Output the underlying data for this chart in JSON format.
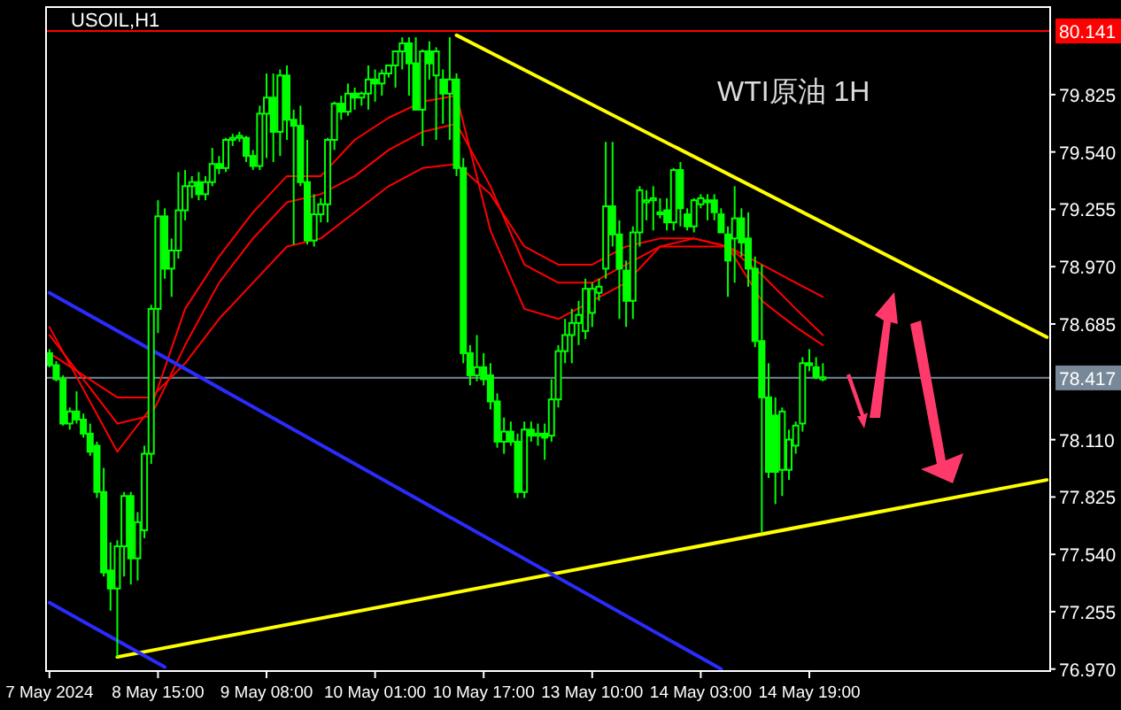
{
  "chart_data": {
    "type": "candlestick",
    "title": "USOIL,H1",
    "annotations": [
      "WTI原油 1H"
    ],
    "categories": [
      "7 May 2024",
      null,
      null,
      null,
      null,
      null,
      null,
      null,
      null,
      null,
      null,
      null,
      null,
      null,
      null,
      null,
      "8 May 15:00",
      null,
      null,
      null,
      null,
      null,
      null,
      null,
      null,
      null,
      null,
      null,
      null,
      null,
      null,
      null,
      "9 May 08:00",
      null,
      null,
      null,
      null,
      null,
      null,
      null,
      null,
      null,
      null,
      null,
      null,
      null,
      null,
      null,
      "10 May 01:00",
      null,
      null,
      null,
      null,
      null,
      null,
      null,
      null,
      null,
      null,
      null,
      null,
      null,
      null,
      null,
      "10 May 17:00",
      null,
      null,
      null,
      null,
      null,
      null,
      null,
      null,
      null,
      null,
      null,
      null,
      null,
      null,
      null,
      "13 May 10:00",
      null,
      null,
      null,
      null,
      null,
      null,
      null,
      null,
      null,
      null,
      null,
      null,
      null,
      null,
      null,
      "14 May 03:00",
      null,
      null,
      null,
      null,
      null,
      null,
      null,
      null,
      null,
      null,
      null,
      null,
      null,
      null,
      null,
      "14 May 19:00",
      null,
      null,
      null,
      null,
      null,
      null,
      null,
      null,
      null,
      null,
      null,
      null,
      null,
      null,
      null,
      null,
      null,
      null,
      null,
      null,
      null,
      null,
      null,
      null,
      null,
      null,
      null,
      null,
      null,
      null,
      null,
      null,
      null,
      null,
      null
    ],
    "ohlc": [
      [
        78.54,
        78.56,
        78.47,
        78.48
      ],
      [
        78.48,
        78.5,
        78.4,
        78.41
      ],
      [
        78.41,
        78.43,
        78.18,
        78.19
      ],
      [
        78.19,
        78.27,
        78.16,
        78.25
      ],
      [
        78.25,
        78.35,
        78.19,
        78.21
      ],
      [
        78.21,
        78.24,
        78.12,
        78.14
      ],
      [
        78.14,
        78.19,
        78.03,
        78.05
      ],
      [
        78.08,
        78.1,
        77.82,
        77.85
      ],
      [
        77.85,
        77.97,
        77.43,
        77.45
      ],
      [
        77.46,
        77.6,
        77.26,
        77.37
      ],
      [
        77.37,
        77.61,
        77.03,
        77.58
      ],
      [
        77.58,
        77.85,
        77.43,
        77.83
      ],
      [
        77.83,
        77.85,
        77.39,
        77.52
      ],
      [
        77.52,
        77.75,
        77.41,
        77.7
      ],
      [
        77.66,
        78.08,
        77.62,
        78.04
      ],
      [
        78.04,
        78.78,
        77.99,
        78.76
      ],
      [
        78.76,
        79.3,
        78.64,
        79.22
      ],
      [
        79.22,
        79.26,
        78.91,
        78.96
      ],
      [
        78.96,
        79.11,
        78.82,
        79.05
      ],
      [
        79.05,
        79.44,
        79.01,
        79.25
      ],
      [
        79.25,
        79.45,
        79.2,
        79.37
      ],
      [
        79.37,
        79.42,
        79.31,
        79.39
      ],
      [
        79.39,
        79.44,
        79.3,
        79.33
      ],
      [
        79.33,
        79.42,
        79.3,
        79.39
      ],
      [
        79.39,
        79.56,
        79.37,
        79.48
      ],
      [
        79.48,
        79.52,
        79.43,
        79.46
      ],
      [
        79.46,
        79.61,
        79.44,
        79.6
      ],
      [
        79.6,
        79.63,
        79.57,
        79.61
      ],
      [
        79.61,
        79.64,
        79.59,
        79.62
      ],
      [
        79.61,
        79.62,
        79.49,
        79.52
      ],
      [
        79.52,
        79.55,
        79.45,
        79.47
      ],
      [
        79.47,
        79.77,
        79.45,
        79.73
      ],
      [
        79.73,
        79.93,
        79.51,
        79.81
      ],
      [
        79.81,
        79.93,
        79.49,
        79.64
      ],
      [
        79.64,
        79.95,
        79.52,
        79.92
      ],
      [
        79.92,
        79.97,
        79.6,
        79.7
      ],
      [
        79.7,
        79.75,
        79.08,
        79.67
      ],
      [
        79.67,
        79.77,
        79.37,
        79.39
      ],
      [
        79.39,
        79.6,
        79.08,
        79.1
      ],
      [
        79.1,
        79.33,
        79.07,
        79.23
      ],
      [
        79.23,
        79.31,
        79.19,
        79.28
      ],
      [
        79.28,
        79.61,
        79.19,
        79.6
      ],
      [
        79.6,
        79.79,
        79.55,
        79.78
      ],
      [
        79.78,
        79.82,
        79.7,
        79.74
      ],
      [
        79.74,
        79.88,
        79.72,
        79.83
      ],
      [
        79.83,
        79.86,
        79.75,
        79.81
      ],
      [
        79.81,
        79.84,
        79.77,
        79.83
      ],
      [
        79.83,
        79.97,
        79.75,
        79.9
      ],
      [
        79.9,
        79.95,
        79.79,
        79.88
      ],
      [
        79.88,
        79.95,
        79.82,
        79.93
      ],
      [
        79.93,
        79.97,
        79.91,
        79.97
      ],
      [
        79.97,
        80.04,
        79.86,
        80.04
      ],
      [
        80.04,
        80.11,
        79.95,
        80.08
      ],
      [
        80.08,
        80.11,
        79.82,
        79.98
      ],
      [
        79.98,
        80.11,
        79.75,
        79.75
      ],
      [
        79.75,
        80.05,
        79.57,
        80.04
      ],
      [
        80.04,
        80.09,
        79.9,
        79.98
      ],
      [
        79.92,
        80.06,
        79.6,
        80.04
      ],
      [
        79.9,
        79.95,
        79.68,
        79.83
      ],
      [
        79.83,
        80.11,
        79.6,
        79.9
      ],
      [
        79.9,
        79.93,
        79.42,
        79.46
      ],
      [
        79.46,
        79.51,
        78.49,
        78.54
      ],
      [
        78.54,
        78.58,
        78.38,
        78.43
      ],
      [
        78.43,
        78.63,
        78.4,
        78.47
      ],
      [
        78.47,
        78.54,
        78.38,
        78.41
      ],
      [
        78.43,
        78.49,
        78.26,
        78.3
      ],
      [
        78.3,
        78.34,
        78.07,
        78.1
      ],
      [
        78.1,
        78.22,
        78.04,
        78.15
      ],
      [
        78.15,
        78.2,
        78.08,
        78.1
      ],
      [
        78.1,
        78.14,
        77.82,
        77.85
      ],
      [
        77.85,
        78.2,
        77.82,
        78.16
      ],
      [
        78.16,
        78.2,
        78.1,
        78.13
      ],
      [
        78.13,
        78.19,
        78.08,
        78.14
      ],
      [
        78.14,
        78.19,
        78.01,
        78.12
      ],
      [
        78.13,
        78.41,
        78.1,
        78.31
      ],
      [
        78.31,
        78.58,
        78.27,
        78.55
      ],
      [
        78.55,
        78.71,
        78.49,
        78.63
      ],
      [
        78.63,
        78.76,
        78.49,
        78.69
      ],
      [
        78.69,
        78.8,
        78.58,
        78.73
      ],
      [
        78.65,
        78.91,
        78.61,
        78.86
      ],
      [
        78.74,
        78.89,
        78.67,
        78.86
      ],
      [
        78.84,
        78.91,
        78.8,
        78.87
      ],
      [
        78.96,
        79.59,
        78.91,
        79.27
      ],
      [
        79.27,
        79.59,
        79.07,
        79.13
      ],
      [
        79.13,
        79.2,
        78.71,
        78.96
      ],
      [
        78.95,
        79.0,
        78.67,
        78.8
      ],
      [
        78.8,
        79.17,
        78.71,
        79.14
      ],
      [
        79.14,
        79.37,
        79.07,
        79.35
      ],
      [
        79.29,
        79.35,
        79.2,
        79.3
      ],
      [
        79.3,
        79.37,
        79.15,
        79.31
      ],
      [
        79.24,
        79.31,
        79.21,
        79.23
      ],
      [
        79.25,
        79.31,
        79.15,
        79.19
      ],
      [
        79.19,
        79.46,
        79.15,
        79.45
      ],
      [
        79.45,
        79.49,
        79.17,
        79.26
      ],
      [
        79.23,
        79.26,
        79.15,
        79.17
      ],
      [
        79.17,
        79.31,
        79.14,
        79.3
      ],
      [
        79.28,
        79.33,
        79.26,
        79.31
      ],
      [
        79.3,
        79.33,
        79.2,
        79.29
      ],
      [
        79.3,
        79.33,
        79.2,
        79.24
      ],
      [
        79.23,
        79.26,
        79.14,
        79.14
      ],
      [
        79.13,
        79.17,
        78.82,
        79.0
      ],
      [
        79.11,
        79.37,
        78.89,
        79.21
      ],
      [
        79.21,
        79.26,
        79.02,
        79.09
      ],
      [
        79.11,
        79.24,
        78.87,
        78.96
      ],
      [
        78.96,
        79.02,
        78.57,
        78.6
      ],
      [
        78.6,
        78.98,
        77.65,
        78.32
      ],
      [
        78.32,
        78.49,
        77.92,
        77.95
      ],
      [
        78.23,
        78.32,
        77.79,
        77.95
      ],
      [
        77.96,
        78.27,
        77.83,
        78.25
      ],
      [
        77.96,
        78.16,
        77.91,
        78.11
      ],
      [
        78.08,
        78.2,
        78.04,
        78.18
      ],
      [
        78.19,
        78.52,
        78.15,
        78.49
      ],
      [
        78.49,
        78.56,
        78.45,
        78.48
      ],
      [
        78.47,
        78.52,
        78.41,
        78.42
      ],
      [
        78.41,
        78.49,
        78.4,
        78.42
      ],
      null,
      null,
      null,
      null,
      null,
      null,
      null,
      null,
      null,
      null,
      null,
      null,
      null,
      null,
      null,
      null,
      null,
      null,
      null,
      null,
      null,
      null,
      null,
      null,
      null,
      null,
      null,
      null,
      null,
      null,
      null,
      null,
      null
    ],
    "series": [
      {
        "type": "line",
        "color": "#ff0000",
        "values": [
          78.67,
          null,
          null,
          null,
          null,
          null,
          null,
          null,
          null,
          null,
          78.05,
          null,
          null,
          null,
          null,
          78.27,
          null,
          null,
          null,
          null,
          78.76,
          null,
          null,
          null,
          null,
          79.02,
          null,
          null,
          null,
          null,
          79.24,
          null,
          null,
          null,
          null,
          79.42,
          null,
          null,
          null,
          null,
          79.42,
          null,
          null,
          null,
          null,
          79.6,
          null,
          null,
          null,
          null,
          79.71,
          null,
          null,
          null,
          null,
          79.79,
          null,
          null,
          null,
          null,
          79.82,
          null,
          null,
          null,
          null,
          79.15,
          null,
          null,
          null,
          null,
          78.76,
          null,
          null,
          null,
          null,
          78.71,
          null,
          null,
          null,
          null,
          78.8,
          null,
          null,
          null,
          null,
          78.89,
          null,
          null,
          null,
          null,
          79.07,
          null,
          null,
          null,
          null,
          79.07,
          null,
          null,
          null,
          null,
          79.07,
          null,
          null,
          null,
          null,
          78.8,
          null,
          null,
          null,
          null,
          78.67,
          null,
          null,
          null,
          78.58,
          null,
          null,
          null,
          null,
          null,
          null,
          null,
          null,
          null,
          null,
          null,
          null,
          null,
          null,
          null,
          null,
          null,
          null,
          null,
          null,
          null,
          null,
          null,
          null,
          null,
          null,
          null,
          null,
          null,
          null,
          null,
          null,
          null
        ]
      },
      {
        "type": "line",
        "color": "#ff0000",
        "values": [
          78.63,
          null,
          null,
          null,
          null,
          null,
          null,
          null,
          null,
          null,
          78.19,
          null,
          null,
          null,
          null,
          78.23,
          null,
          null,
          null,
          null,
          78.58,
          null,
          null,
          null,
          null,
          78.89,
          null,
          null,
          null,
          null,
          79.11,
          null,
          null,
          null,
          null,
          79.29,
          null,
          null,
          null,
          null,
          79.33,
          null,
          null,
          null,
          null,
          79.42,
          null,
          null,
          null,
          null,
          79.55,
          null,
          null,
          null,
          null,
          79.64,
          null,
          null,
          null,
          null,
          79.68,
          null,
          null,
          null,
          null,
          79.37,
          null,
          null,
          null,
          null,
          78.98,
          null,
          null,
          null,
          null,
          78.89,
          null,
          null,
          null,
          null,
          78.89,
          null,
          null,
          null,
          null,
          78.98,
          null,
          null,
          null,
          null,
          79.07,
          null,
          null,
          null,
          null,
          79.11,
          null,
          null,
          null,
          null,
          79.07,
          null,
          null,
          null,
          null,
          78.93,
          null,
          null,
          null,
          null,
          78.76,
          null,
          null,
          null,
          78.63,
          null,
          null,
          null,
          null,
          null,
          null,
          null,
          null,
          null,
          null,
          null,
          null,
          null,
          null,
          null,
          null,
          null,
          null,
          null,
          null,
          null,
          null,
          null,
          null,
          null,
          null,
          null,
          null,
          null,
          null,
          null,
          null,
          null
        ]
      },
      {
        "type": "line",
        "color": "#ff0000",
        "values": [
          78.54,
          null,
          null,
          null,
          null,
          null,
          null,
          null,
          null,
          null,
          78.32,
          null,
          null,
          null,
          null,
          78.32,
          null,
          null,
          null,
          null,
          78.49,
          null,
          null,
          null,
          null,
          78.71,
          null,
          null,
          null,
          null,
          78.89,
          null,
          null,
          null,
          null,
          79.07,
          null,
          null,
          null,
          null,
          79.11,
          null,
          null,
          null,
          null,
          79.24,
          null,
          null,
          null,
          null,
          79.37,
          null,
          null,
          null,
          null,
          79.46,
          null,
          null,
          null,
          null,
          79.48,
          null,
          null,
          null,
          null,
          79.33,
          null,
          null,
          null,
          null,
          79.07,
          null,
          null,
          null,
          null,
          78.98,
          null,
          null,
          null,
          null,
          78.98,
          null,
          null,
          null,
          null,
          79.07,
          null,
          null,
          null,
          null,
          79.11,
          null,
          null,
          null,
          null,
          79.11,
          null,
          null,
          null,
          null,
          79.07,
          null,
          null,
          null,
          null,
          78.98,
          null,
          null,
          null,
          null,
          78.89,
          null,
          null,
          null,
          78.82,
          null,
          null,
          null,
          null,
          null,
          null,
          null,
          null,
          null,
          null,
          null,
          null,
          null,
          null,
          null,
          null,
          null,
          null,
          null,
          null,
          null,
          null,
          null,
          null,
          null,
          null,
          null,
          null,
          null,
          null,
          null,
          null,
          null
        ]
      },
      {
        "type": "line",
        "color": "#ffff00",
        "values": [
          null,
          null,
          null,
          null,
          null,
          null,
          null,
          null,
          null,
          null,
          null,
          null,
          null,
          null,
          null,
          null,
          null,
          null,
          null,
          null,
          null,
          null,
          null,
          null,
          null,
          null,
          null,
          null,
          null,
          null,
          null,
          null,
          null,
          null,
          null,
          null,
          null,
          null,
          null,
          null,
          null,
          null,
          null,
          null,
          null,
          null,
          null,
          null,
          null,
          null,
          null,
          null,
          null,
          null,
          null,
          null,
          null,
          null,
          null,
          null,
          80.12,
          null,
          null,
          null,
          null,
          null,
          null,
          null,
          null,
          null,
          null,
          null,
          null,
          null,
          null,
          null,
          null,
          null,
          null,
          null,
          null,
          null,
          null,
          null,
          null,
          null,
          null,
          null,
          null,
          null,
          null,
          null,
          null,
          null,
          null,
          null,
          null,
          null,
          null,
          null,
          null,
          null,
          null,
          null,
          null,
          null,
          null,
          null,
          null,
          null,
          null,
          null,
          null,
          null,
          null,
          null,
          null,
          null,
          null,
          null,
          null,
          null,
          null,
          null,
          null,
          null,
          null,
          null,
          null,
          null,
          null,
          null,
          null,
          null,
          null,
          null,
          null,
          null,
          null,
          null,
          null,
          null,
          null,
          null,
          null,
          null,
          null,
          78.62
        ]
      },
      {
        "type": "line",
        "color": "#ffff00",
        "values": [
          null,
          null,
          null,
          null,
          null,
          null,
          null,
          null,
          null,
          null,
          77.03,
          null,
          null,
          null,
          null,
          null,
          null,
          null,
          null,
          null,
          null,
          null,
          null,
          null,
          null,
          null,
          null,
          null,
          null,
          null,
          null,
          null,
          null,
          null,
          null,
          null,
          null,
          null,
          null,
          null,
          null,
          null,
          null,
          null,
          null,
          null,
          null,
          null,
          null,
          null,
          null,
          null,
          null,
          null,
          null,
          null,
          null,
          null,
          null,
          null,
          null,
          null,
          null,
          null,
          null,
          null,
          null,
          null,
          null,
          null,
          null,
          null,
          null,
          null,
          null,
          null,
          null,
          null,
          null,
          null,
          null,
          null,
          null,
          null,
          null,
          null,
          null,
          null,
          null,
          null,
          null,
          null,
          null,
          null,
          null,
          null,
          null,
          null,
          null,
          null,
          null,
          null,
          null,
          null,
          null,
          null,
          null,
          null,
          null,
          null,
          null,
          null,
          null,
          null,
          null,
          null,
          null,
          null,
          null,
          null,
          null,
          null,
          null,
          null,
          null,
          null,
          null,
          null,
          null,
          null,
          null,
          null,
          null,
          null,
          null,
          null,
          null,
          null,
          null,
          null,
          null,
          null,
          null,
          null,
          null,
          null,
          null,
          77.91
        ]
      },
      {
        "type": "line",
        "color": "#2b2bff",
        "values": [
          78.84,
          null,
          null,
          null,
          null,
          null,
          null,
          null,
          null,
          null,
          null,
          null,
          null,
          null,
          null,
          null,
          null,
          null,
          null,
          null,
          null,
          null,
          null,
          null,
          null,
          null,
          null,
          null,
          null,
          null,
          null,
          null,
          null,
          null,
          null,
          null,
          null,
          null,
          null,
          null,
          null,
          null,
          null,
          null,
          null,
          null,
          null,
          null,
          null,
          null,
          null,
          null,
          null,
          null,
          null,
          null,
          null,
          null,
          null,
          null,
          null,
          null,
          null,
          null,
          null,
          null,
          null,
          null,
          null,
          null,
          null,
          null,
          null,
          null,
          null,
          null,
          null,
          null,
          null,
          null,
          null,
          null,
          null,
          null,
          null,
          null,
          null,
          null,
          null,
          null,
          null,
          null,
          null,
          null,
          null,
          null,
          null,
          null,
          null,
          76.97,
          null,
          null,
          null,
          null,
          null,
          null,
          null,
          null,
          null,
          null,
          null,
          null,
          null,
          null,
          null,
          null,
          null,
          null,
          null,
          null,
          null,
          null,
          null,
          null,
          null,
          null,
          null,
          null,
          null,
          null,
          null,
          null,
          null,
          null,
          null,
          null,
          null,
          null,
          null,
          null,
          null,
          null,
          null,
          null,
          null,
          null,
          null,
          null
        ]
      },
      {
        "type": "line",
        "color": "#2b2bff",
        "values": [
          77.3,
          null,
          null,
          null,
          null,
          null,
          null,
          null,
          null,
          null,
          null,
          null,
          null,
          null,
          null,
          null,
          null,
          76.98,
          null,
          null,
          null,
          null,
          null,
          null,
          null,
          null,
          null,
          null,
          null,
          null,
          null,
          null,
          null,
          null,
          null,
          null,
          null,
          null,
          null,
          null,
          null,
          null,
          null,
          null,
          null,
          null,
          null,
          null,
          null,
          null,
          null,
          null,
          null,
          null,
          null,
          null,
          null,
          null,
          null,
          null,
          null,
          null,
          null,
          null,
          null,
          null,
          null,
          null,
          null,
          null,
          null,
          null,
          null,
          null,
          null,
          null,
          null,
          null,
          null,
          null,
          null,
          null,
          null,
          null,
          null,
          null,
          null,
          null,
          null,
          null,
          null,
          null,
          null,
          null,
          null,
          null,
          null,
          null,
          null,
          null,
          null,
          null,
          null,
          null,
          null,
          null,
          null,
          null,
          null,
          null,
          null,
          null,
          null,
          null,
          null,
          null,
          null,
          null,
          null,
          null,
          null,
          null,
          null,
          null,
          null,
          null,
          null,
          null,
          null,
          null,
          null,
          null,
          null,
          null,
          null,
          null,
          null,
          null,
          null,
          null,
          null,
          null,
          null,
          null,
          null,
          null,
          null,
          null
        ]
      }
    ],
    "ylim": [
      76.96,
      80.26
    ],
    "yticks": [
      {
        "value": 76.97,
        "label": "76.970"
      },
      {
        "value": 77.255,
        "label": "77.255"
      },
      {
        "value": 77.54,
        "label": "77.540"
      },
      {
        "value": 77.825,
        "label": "77.825"
      },
      {
        "value": 78.11,
        "label": "78.110"
      },
      {
        "value": 78.685,
        "label": "78.685"
      },
      {
        "value": 78.97,
        "label": "78.970"
      },
      {
        "value": 79.255,
        "label": "79.255"
      },
      {
        "value": 79.54,
        "label": "79.540"
      },
      {
        "value": 79.825,
        "label": "79.825"
      }
    ],
    "ref_lines": [
      {
        "axis": "y",
        "value": 78.417,
        "label": "78.417",
        "color": "#778899"
      },
      {
        "axis": "y",
        "value": 80.141,
        "label": "80.141",
        "color": "#ff0000"
      }
    ]
  }
}
